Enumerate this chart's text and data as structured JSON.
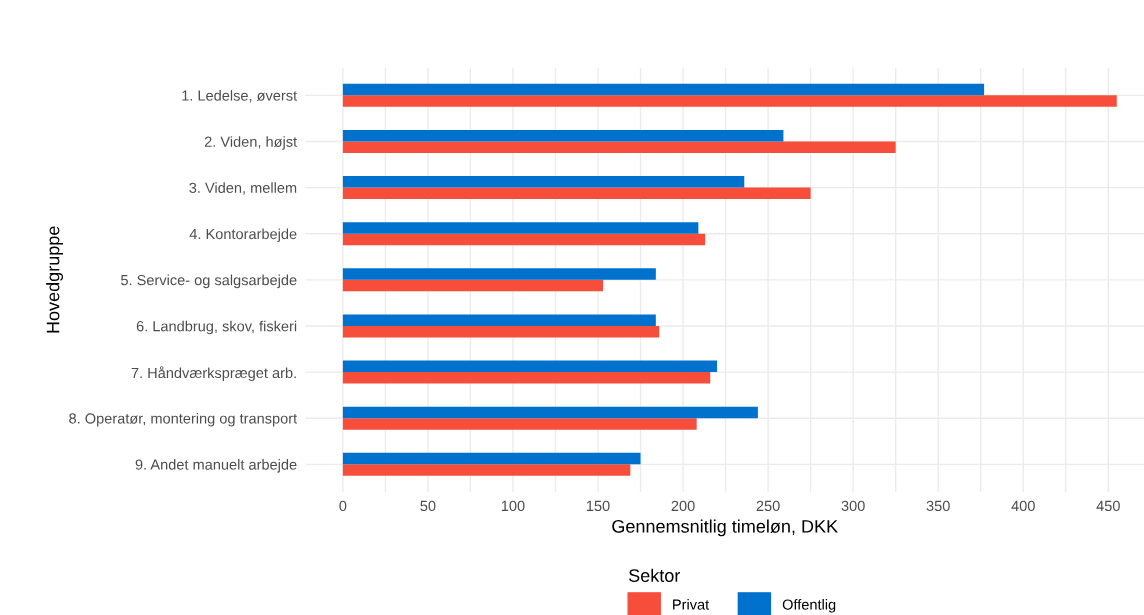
{
  "chart_data": {
    "type": "bar",
    "orientation": "horizontal",
    "xlabel": "Gennemsnitlig timeløn, DKK",
    "ylabel": "Hovedgruppe",
    "legend_title": "Sektor",
    "legend": "bottom",
    "grid": true,
    "categories": [
      "1. Ledelse, øverst",
      "2. Viden, højst",
      "3. Viden, mellem",
      "4. Kontorarbejde",
      "5. Service- og salgsarbejde",
      "6. Landbrug, skov, fiskeri",
      "7. Håndværkspræget arb.",
      "8. Operatør, montering og transport",
      "9. Andet manuelt arbejde"
    ],
    "series": [
      {
        "name": "Privat",
        "color": "#f74e3c",
        "values": [
          455,
          325,
          275,
          213,
          153,
          186,
          216,
          208,
          169
        ]
      },
      {
        "name": "Offentlig",
        "color": "#0072ce",
        "values": [
          377,
          259,
          236,
          209,
          184,
          184,
          220,
          244,
          175
        ]
      }
    ],
    "xlim": [
      -22,
      471
    ],
    "xticks": [
      0,
      {
        "value": 25,
        "label": null
      },
      50,
      {
        "value": 75,
        "label": null
      },
      100,
      {
        "value": 125,
        "label": null
      },
      150,
      {
        "value": 175,
        "label": null
      },
      200,
      {
        "value": 225,
        "label": null
      },
      250,
      {
        "value": 275,
        "label": null
      },
      300,
      {
        "value": 325,
        "label": null
      },
      350,
      {
        "value": 375,
        "label": null
      },
      400,
      {
        "value": 425,
        "label": null
      },
      450
    ]
  }
}
